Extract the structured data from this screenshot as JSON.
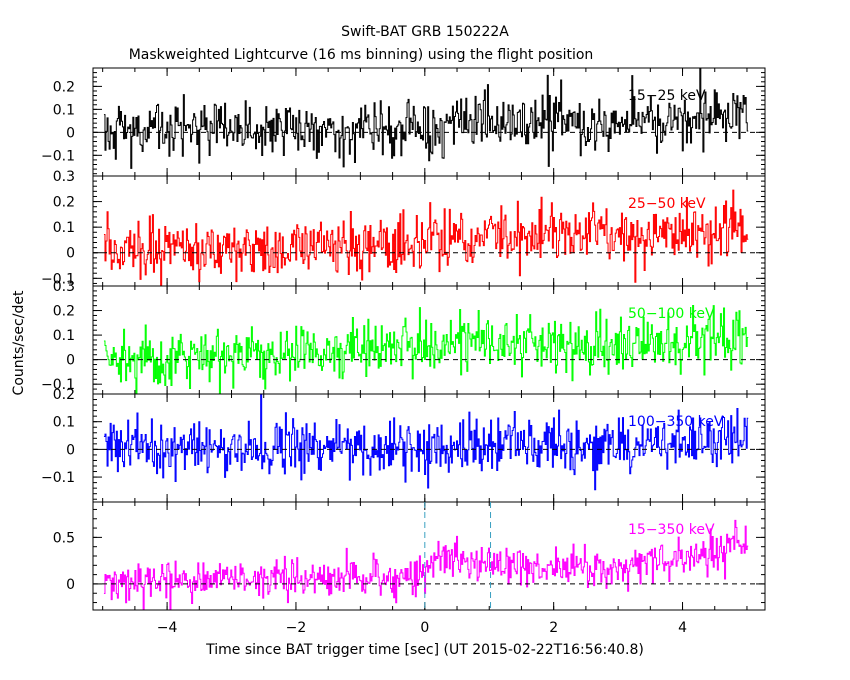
{
  "title": "Swift-BAT GRB 150222A",
  "subtitle": "Maskweighted Lightcurve (16 ms binning) using the flight position",
  "xlabel": "Time since BAT trigger time [sec] (UT 2015-02-22T16:56:40.8)",
  "ylabel": "Counts/sec/det",
  "chart_data": {
    "type": "line",
    "xlim": [
      -5.15,
      5.28
    ],
    "x_ticks": [
      -4,
      -2,
      0,
      2,
      4
    ],
    "x_tick_labels": [
      "−4",
      "−2",
      "0",
      "2",
      "4"
    ],
    "bin_width_s": 0.016,
    "x_range": [
      -4.98,
      5.0
    ],
    "marker_lines": [
      0.0,
      1.02
    ],
    "panels": [
      {
        "label": "15−25 keV",
        "color": "#000000",
        "ylim": [
          -0.19,
          0.28
        ],
        "y_ticks": [
          -0.1,
          0,
          0.1,
          0.2
        ],
        "y_tick_labels": [
          "−0.1",
          "0",
          "0.1",
          "0.2"
        ],
        "noise_sigma": 0.062,
        "baseline": [
          [
            -5,
            0.0
          ],
          [
            0,
            0.02
          ],
          [
            1,
            0.05
          ],
          [
            3,
            0.04
          ],
          [
            5,
            0.07
          ]
        ]
      },
      {
        "label": "25−50 keV",
        "color": "#ff0000",
        "ylim": [
          -0.13,
          0.3
        ],
        "y_ticks": [
          -0.1,
          0,
          0.1,
          0.2,
          0.3
        ],
        "y_tick_labels": [
          "−0.1",
          "0",
          "0.1",
          "0.2",
          "0.3"
        ],
        "noise_sigma": 0.058,
        "baseline": [
          [
            -5,
            0.01
          ],
          [
            0,
            0.03
          ],
          [
            1,
            0.08
          ],
          [
            3,
            0.06
          ],
          [
            5,
            0.09
          ]
        ]
      },
      {
        "label": "50−100 keV",
        "color": "#00ff00",
        "ylim": [
          -0.14,
          0.3
        ],
        "y_ticks": [
          -0.1,
          0,
          0.1,
          0.2,
          0.3
        ],
        "y_tick_labels": [
          "−0.1",
          "0",
          "0.1",
          "0.2",
          "0.3"
        ],
        "noise_sigma": 0.058,
        "baseline": [
          [
            -5,
            0.01
          ],
          [
            0,
            0.05
          ],
          [
            1,
            0.07
          ],
          [
            3,
            0.06
          ],
          [
            5,
            0.09
          ]
        ]
      },
      {
        "label": "100−350 keV",
        "color": "#0000ff",
        "ylim": [
          -0.19,
          0.2
        ],
        "y_ticks": [
          -0.1,
          0,
          0.1,
          0.2
        ],
        "y_tick_labels": [
          "−0.1",
          "0",
          "0.1",
          "0.2"
        ],
        "noise_sigma": 0.052,
        "baseline": [
          [
            -5,
            0.01
          ],
          [
            0,
            0.0
          ],
          [
            1,
            0.02
          ],
          [
            3,
            0.01
          ],
          [
            5,
            0.04
          ]
        ]
      },
      {
        "label": "15−350 keV",
        "color": "#ff00ff",
        "ylim": [
          -0.28,
          0.88
        ],
        "y_ticks": [
          0,
          0.5
        ],
        "y_tick_labels": [
          "0",
          "0.5"
        ],
        "noise_sigma": 0.11,
        "baseline": [
          [
            -5,
            0.02
          ],
          [
            0,
            0.08
          ],
          [
            0.01,
            0.25
          ],
          [
            1,
            0.22
          ],
          [
            3,
            0.18
          ],
          [
            5,
            0.38
          ]
        ]
      }
    ]
  }
}
